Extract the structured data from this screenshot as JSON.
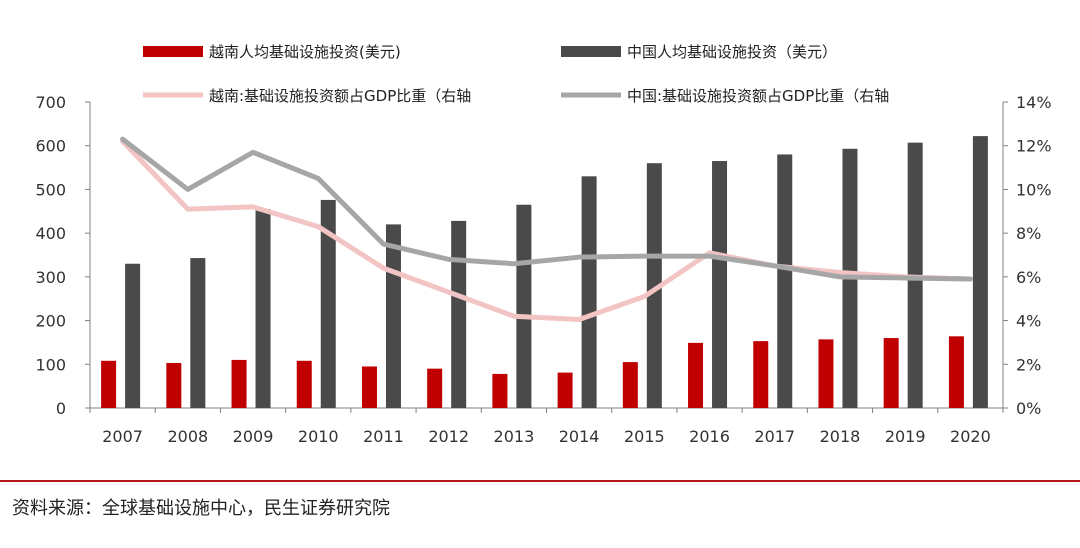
{
  "chart_data": {
    "type": "bar+line",
    "categories": [
      "2007",
      "2008",
      "2009",
      "2010",
      "2011",
      "2012",
      "2013",
      "2014",
      "2015",
      "2016",
      "2017",
      "2018",
      "2019",
      "2020"
    ],
    "bar_series": [
      {
        "name": "越南人均基础设施投资(美元)",
        "color": "#c00000",
        "values": [
          108,
          103,
          110,
          108,
          95,
          90,
          78,
          81,
          105,
          149,
          153,
          157,
          160,
          164
        ]
      },
      {
        "name": "中国人均基础设施投资（美元）",
        "color": "#4a4a4a",
        "values": [
          330,
          343,
          455,
          476,
          420,
          428,
          465,
          530,
          560,
          565,
          580,
          593,
          607,
          622
        ]
      }
    ],
    "line_series": [
      {
        "name": "越南:基础设施投资额占GDP比重（右轴",
        "color": "#f2c4c4",
        "values": [
          12.2,
          9.1,
          9.2,
          8.3,
          6.4,
          5.3,
          4.2,
          4.05,
          5.1,
          7.1,
          6.5,
          6.2,
          6.0,
          5.9
        ]
      },
      {
        "name": "中国:基础设施投资额占GDP比重（右轴",
        "color": "#a6a6a6",
        "values": [
          12.3,
          10.0,
          11.7,
          10.5,
          7.5,
          6.8,
          6.6,
          6.9,
          6.95,
          6.95,
          6.5,
          6.0,
          5.95,
          5.9
        ]
      }
    ],
    "y_left": {
      "min": 0,
      "max": 700,
      "ticks": [
        "0",
        "100",
        "200",
        "300",
        "400",
        "500",
        "600",
        "700"
      ]
    },
    "y_right": {
      "min": 0,
      "max": 14,
      "ticks": [
        "0%",
        "2%",
        "4%",
        "6%",
        "8%",
        "10%",
        "12%",
        "14%"
      ]
    },
    "grid": false
  },
  "source_text": "资料来源：全球基础设施中心，民生证券研究院"
}
